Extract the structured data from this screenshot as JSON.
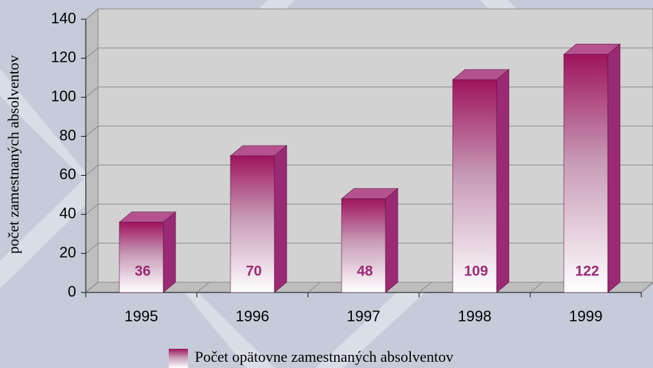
{
  "chart_data": {
    "type": "bar3d",
    "ylabel": "počet zamestnaných absolventov",
    "categories": [
      "1995",
      "1996",
      "1997",
      "1998",
      "1999"
    ],
    "series": [
      {
        "name": "Počet opätovne zamestnaných absolventov",
        "color": "#9b2a74",
        "values": [
          36,
          70,
          48,
          109,
          122
        ]
      }
    ],
    "ylim": [
      0,
      140
    ],
    "yticks": [
      0,
      20,
      40,
      60,
      80,
      100,
      120,
      140
    ],
    "grid": true
  }
}
